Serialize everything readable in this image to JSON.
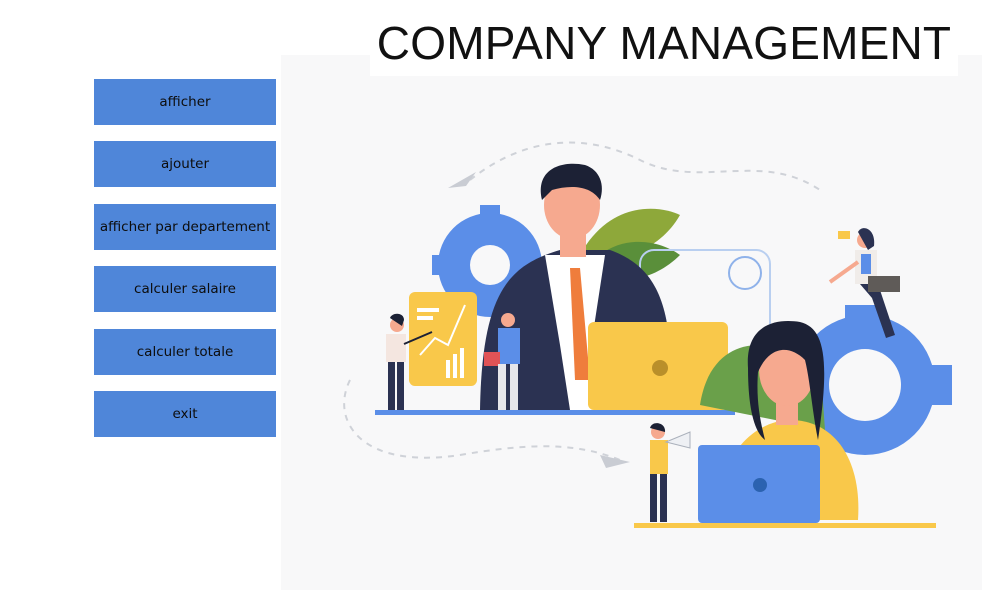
{
  "window": {
    "title": "COMPANY MANAGEMENT"
  },
  "menu": {
    "buttons": [
      {
        "id": "afficher",
        "label": "afficher"
      },
      {
        "id": "ajouter",
        "label": "ajouter"
      },
      {
        "id": "afficher-par-departement",
        "label": "afficher par departement"
      },
      {
        "id": "calculer-salaire",
        "label": "calculer salaire"
      },
      {
        "id": "calculer-totale",
        "label": "calculer totale"
      },
      {
        "id": "exit",
        "label": "exit"
      }
    ]
  },
  "colors": {
    "button_bg": "#4f86d9",
    "accent_yellow": "#f9c84a",
    "accent_blue": "#5b8ee8",
    "dark_navy": "#2b3252"
  },
  "illustration": {
    "icon": "business-team-illustration"
  }
}
